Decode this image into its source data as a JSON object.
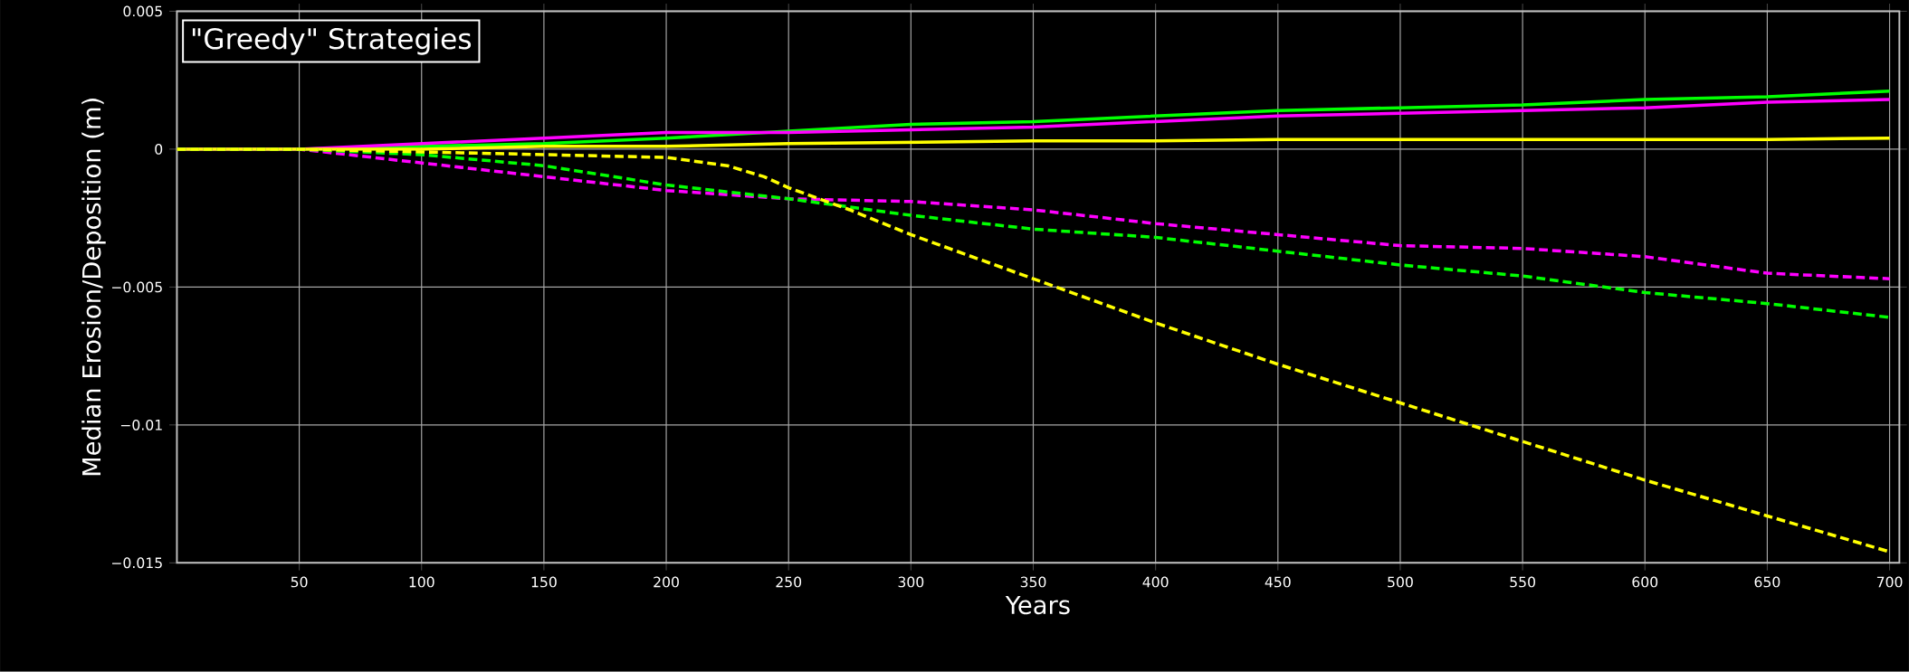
{
  "chart_data": {
    "type": "line",
    "title": "\"Greedy\" Strategies",
    "xlabel": "Years",
    "ylabel": "Median Erosion/Deposition (m)",
    "x": [
      0,
      50,
      100,
      150,
      200,
      250,
      300,
      350,
      400,
      450,
      500,
      550,
      600,
      650,
      700
    ],
    "series": [
      {
        "color": "#00ff00",
        "line_style": "solid",
        "values": [
          0,
          0,
          0.0001,
          0.0002,
          0.0004,
          0.00065,
          0.0009,
          0.001,
          0.0012,
          0.0014,
          0.0015,
          0.0016,
          0.0018,
          0.0019,
          0.0021
        ]
      },
      {
        "color": "#ff00ff",
        "line_style": "solid",
        "values": [
          0,
          0,
          0.0002,
          0.0004,
          0.0006,
          0.0006,
          0.0007,
          0.0008,
          0.001,
          0.0012,
          0.0013,
          0.0014,
          0.0015,
          0.0017,
          0.0018
        ]
      },
      {
        "color": "#ffff00",
        "line_style": "solid",
        "values": [
          0,
          0,
          0,
          0.0001,
          0.0001,
          0.0002,
          0.00025,
          0.0003,
          0.0003,
          0.00035,
          0.00035,
          0.00035,
          0.00035,
          0.00035,
          0.0004
        ]
      },
      {
        "color": "#ff00ff",
        "line_style": "dashed",
        "values": [
          0,
          0,
          -0.0005,
          -0.001,
          -0.0015,
          -0.0018,
          -0.0019,
          -0.0022,
          -0.0027,
          -0.0031,
          -0.0035,
          -0.0036,
          -0.0039,
          -0.0045,
          -0.0047
        ]
      },
      {
        "color": "#00ff00",
        "line_style": "dashed",
        "values": [
          0,
          0,
          -0.0002,
          -0.0006,
          -0.0013,
          -0.0018,
          -0.0024,
          -0.0029,
          -0.0032,
          -0.0037,
          -0.0042,
          -0.0046,
          -0.0052,
          -0.0056,
          -0.0061
        ]
      },
      {
        "color": "#ffff00",
        "line_style": "dashed",
        "x": [
          0,
          50,
          100,
          150,
          200,
          225,
          240,
          250,
          275,
          300,
          350,
          400,
          450,
          500,
          550,
          600,
          650,
          700
        ],
        "values": [
          0,
          0,
          -0.0001,
          -0.0002,
          -0.0003,
          -0.0006,
          -0.001,
          -0.0014,
          -0.0022,
          -0.0031,
          -0.0047,
          -0.0063,
          -0.0078,
          -0.0092,
          -0.0106,
          -0.012,
          -0.0133,
          -0.0146
        ]
      }
    ],
    "xlim": [
      0,
      704
    ],
    "ylim": [
      -0.015,
      0.005
    ],
    "xticks": [
      50,
      100,
      150,
      200,
      250,
      300,
      350,
      400,
      450,
      500,
      550,
      600,
      650,
      700
    ],
    "yticks": [
      {
        "value": -0.015,
        "label": "−0.015"
      },
      {
        "value": -0.01,
        "label": "−0.01"
      },
      {
        "value": -0.005,
        "label": "−0.005"
      },
      0,
      0.005
    ],
    "grid": true
  }
}
